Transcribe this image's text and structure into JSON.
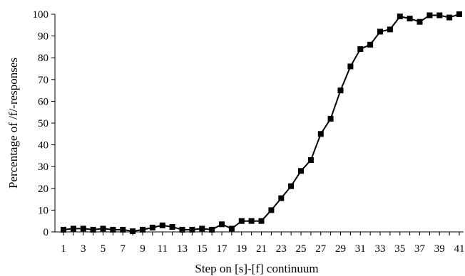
{
  "chart_data": {
    "type": "line",
    "title": "",
    "xlabel": "Step on [s]-[f] continuum",
    "ylabel": "Percentage of /f/-responses",
    "xlim": [
      1,
      41
    ],
    "ylim": [
      0,
      100
    ],
    "y_ticks": [
      0,
      10,
      20,
      30,
      40,
      50,
      60,
      70,
      80,
      90,
      100
    ],
    "x_ticks": [
      1,
      3,
      5,
      7,
      9,
      11,
      13,
      15,
      17,
      19,
      21,
      23,
      25,
      27,
      29,
      31,
      33,
      35,
      37,
      39,
      41
    ],
    "grid": false,
    "legend": "none",
    "marker": "square",
    "color": "#000000",
    "x": [
      1,
      2,
      3,
      4,
      5,
      6,
      7,
      8,
      9,
      10,
      11,
      12,
      13,
      14,
      15,
      16,
      17,
      18,
      19,
      20,
      21,
      22,
      23,
      24,
      25,
      26,
      27,
      28,
      29,
      30,
      31,
      32,
      33,
      34,
      35,
      36,
      37,
      38,
      39,
      40,
      41
    ],
    "y": [
      1,
      1.5,
      1.5,
      1,
      1.5,
      1,
      1,
      0.3,
      1,
      2,
      3,
      2.3,
      1,
      1,
      1.5,
      1,
      3.5,
      1.5,
      5,
      5,
      5,
      10,
      15.5,
      21,
      28,
      33,
      45,
      52,
      65,
      76,
      84,
      86,
      92,
      93,
      99,
      98,
      96.5,
      99.5,
      99.5,
      98.5,
      100
    ]
  }
}
